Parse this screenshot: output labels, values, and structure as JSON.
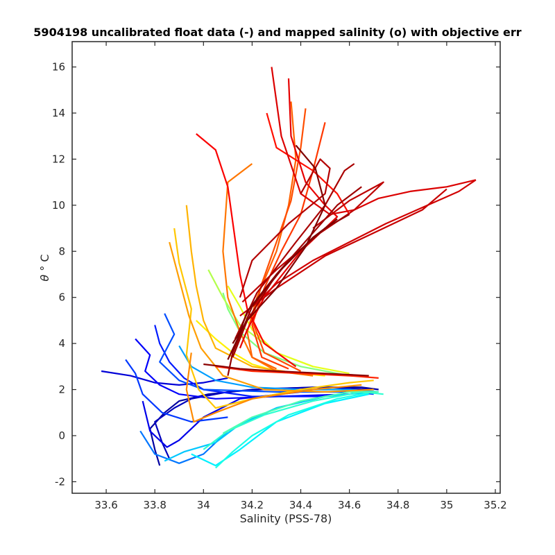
{
  "chart_data": {
    "type": "line",
    "title": "5904198 uncalibrated float data (-) and mapped salinity (o) with objective err",
    "xlabel": "Salinity (PSS-78)",
    "ylabel_symbol": "θ",
    "ylabel_unit": "° C",
    "xlim": [
      33.46,
      35.22
    ],
    "ylim": [
      -2.5,
      17.1
    ],
    "xticks": [
      33.6,
      33.8,
      34,
      34.2,
      34.4,
      34.6,
      34.8,
      35,
      35.2
    ],
    "xtick_labels": [
      "33.6",
      "33.8",
      "34",
      "34.2",
      "34.4",
      "34.6",
      "34.8",
      "35",
      "35.2"
    ],
    "yticks": [
      -2,
      0,
      2,
      4,
      6,
      8,
      10,
      12,
      14,
      16
    ],
    "ytick_labels": [
      "-2",
      "0",
      "2",
      "4",
      "6",
      "8",
      "10",
      "12",
      "14",
      "16"
    ],
    "grid": false,
    "colormap": [
      "#00008f",
      "#0000ff",
      "#0080ff",
      "#00ffff",
      "#80ff80",
      "#ffff00",
      "#ff8000",
      "#ff0000",
      "#800000"
    ],
    "series": [
      {
        "color_index": 0.02,
        "x": [
          33.82,
          33.8,
          33.78,
          33.84,
          33.9,
          34.02,
          34.2,
          34.45,
          34.65,
          34.72
        ],
        "y": [
          -1.3,
          -0.6,
          0.3,
          1.0,
          1.5,
          1.8,
          2.0,
          2.1,
          2.1,
          2.0
        ]
      },
      {
        "color_index": 0.05,
        "x": [
          33.86,
          33.83,
          33.8,
          33.88,
          33.95,
          34.1,
          34.3,
          34.5,
          34.7
        ],
        "y": [
          -1.0,
          -0.3,
          0.6,
          1.2,
          1.6,
          1.9,
          2.05,
          2.1,
          2.0
        ]
      },
      {
        "color_index": 0.08,
        "x": [
          33.58,
          33.7,
          33.8,
          33.9,
          34.0,
          34.1
        ],
        "y": [
          2.8,
          2.6,
          2.3,
          2.2,
          2.3,
          2.5
        ]
      },
      {
        "color_index": 0.1,
        "x": [
          33.75,
          33.78,
          33.85,
          33.9,
          34.0,
          34.15,
          34.4,
          34.7
        ],
        "y": [
          1.5,
          0.2,
          -0.5,
          -0.2,
          0.8,
          1.6,
          1.9,
          1.9
        ]
      },
      {
        "color_index": 0.12,
        "x": [
          33.72,
          33.78,
          33.76,
          33.82,
          33.9,
          34.05,
          34.3,
          34.6
        ],
        "y": [
          4.2,
          3.5,
          2.8,
          2.2,
          1.8,
          1.6,
          1.7,
          1.8
        ]
      },
      {
        "color_index": 0.15,
        "x": [
          33.8,
          33.82,
          33.86,
          33.92,
          34.0,
          34.2,
          34.5
        ],
        "y": [
          4.8,
          4.0,
          3.2,
          2.5,
          2.0,
          1.7,
          1.7
        ]
      },
      {
        "color_index": 0.18,
        "x": [
          33.68,
          33.72,
          33.75,
          33.83,
          33.95,
          34.1
        ],
        "y": [
          3.3,
          2.7,
          1.8,
          1.0,
          0.6,
          0.8
        ]
      },
      {
        "color_index": 0.2,
        "x": [
          33.84,
          33.88,
          33.82,
          33.9,
          34.0,
          34.3,
          34.6,
          34.7
        ],
        "y": [
          5.3,
          4.4,
          3.2,
          2.4,
          2.0,
          1.9,
          1.9,
          1.8
        ]
      },
      {
        "color_index": 0.24,
        "x": [
          33.74,
          33.8,
          33.9,
          34.0,
          34.1,
          34.3,
          34.5
        ],
        "y": [
          0.2,
          -0.8,
          -1.2,
          -0.8,
          0.2,
          1.2,
          1.7
        ]
      },
      {
        "color_index": 0.28,
        "x": [
          33.9,
          33.95,
          34.05,
          34.2,
          34.4,
          34.6,
          34.72
        ],
        "y": [
          3.9,
          3.0,
          2.4,
          2.1,
          2.0,
          2.0,
          1.9
        ]
      },
      {
        "color_index": 0.32,
        "x": [
          33.84,
          33.92,
          34.05,
          34.15,
          34.3,
          34.5,
          34.7
        ],
        "y": [
          -1.1,
          -0.7,
          -0.3,
          0.5,
          1.2,
          1.7,
          1.9
        ]
      },
      {
        "color_index": 0.36,
        "x": [
          33.95,
          34.05,
          34.15,
          34.3,
          34.5,
          34.68
        ],
        "y": [
          -0.8,
          -1.3,
          -0.6,
          0.6,
          1.4,
          1.8
        ]
      },
      {
        "color_index": 0.4,
        "x": [
          34.05,
          34.12,
          34.2,
          34.35,
          34.55,
          34.7
        ],
        "y": [
          -1.4,
          -0.7,
          0.0,
          0.9,
          1.6,
          1.9
        ]
      },
      {
        "color_index": 0.42,
        "x": [
          34.0,
          34.1,
          34.25,
          34.45,
          34.65,
          34.74
        ],
        "y": [
          -0.6,
          0.2,
          0.9,
          1.5,
          1.9,
          1.8
        ]
      },
      {
        "color_index": 0.45,
        "x": [
          34.08,
          34.2,
          34.4,
          34.6,
          34.72
        ],
        "y": [
          0.1,
          0.8,
          1.5,
          1.9,
          1.9
        ]
      },
      {
        "color_index": 0.5,
        "x": [
          34.08,
          34.1,
          34.15,
          34.25,
          34.4,
          34.6
        ],
        "y": [
          6.2,
          5.5,
          4.5,
          3.6,
          3.0,
          2.6
        ]
      },
      {
        "color_index": 0.55,
        "x": [
          34.02,
          34.08,
          34.15,
          34.3,
          34.45
        ],
        "y": [
          7.2,
          6.0,
          4.8,
          3.6,
          3.0
        ]
      },
      {
        "color_index": 0.6,
        "x": [
          34.1,
          34.15,
          34.2,
          34.3,
          34.45,
          34.6
        ],
        "y": [
          6.5,
          5.6,
          4.6,
          3.6,
          3.0,
          2.7
        ]
      },
      {
        "color_index": 0.64,
        "x": [
          33.97,
          34.05,
          34.12,
          34.2,
          34.3,
          34.5
        ],
        "y": [
          5.0,
          4.2,
          3.6,
          3.1,
          2.8,
          2.6
        ]
      },
      {
        "color_index": 0.68,
        "x": [
          33.88,
          33.9,
          33.95,
          33.93,
          33.98,
          34.05,
          34.2,
          34.4,
          34.6,
          34.7
        ],
        "y": [
          9.0,
          7.5,
          5.5,
          3.5,
          2.0,
          1.2,
          1.6,
          2.0,
          2.3,
          2.4
        ]
      },
      {
        "color_index": 0.7,
        "x": [
          33.93,
          33.95,
          33.97,
          34.0,
          34.05,
          34.2,
          34.45
        ],
        "y": [
          10.0,
          8.0,
          6.5,
          5.0,
          3.8,
          3.0,
          2.6
        ]
      },
      {
        "color_index": 0.72,
        "x": [
          33.86,
          33.9,
          33.94,
          33.99,
          34.08,
          34.25,
          34.5,
          34.7
        ],
        "y": [
          8.4,
          6.8,
          5.2,
          3.8,
          2.6,
          2.0,
          1.9,
          2.0
        ]
      },
      {
        "color_index": 0.74,
        "x": [
          33.95,
          33.93,
          33.96,
          34.05,
          34.2,
          34.45,
          34.65
        ],
        "y": [
          3.6,
          2.0,
          0.6,
          1.0,
          1.6,
          2.0,
          2.2
        ]
      },
      {
        "color_index": 0.76,
        "x": [
          34.2,
          34.1,
          34.08,
          34.1,
          34.15,
          34.2,
          34.3,
          34.45
        ],
        "y": [
          11.8,
          11.0,
          8.0,
          6.0,
          4.5,
          3.4,
          2.8,
          2.6
        ]
      },
      {
        "color_index": 0.78,
        "x": [
          34.36,
          34.38,
          34.35,
          34.3,
          34.22,
          34.18,
          34.2,
          34.3
        ],
        "y": [
          14.5,
          12.0,
          10.0,
          8.0,
          6.0,
          4.5,
          3.4,
          2.9
        ]
      },
      {
        "color_index": 0.8,
        "x": [
          34.42,
          34.4,
          34.36,
          34.3,
          34.24,
          34.2,
          34.25,
          34.4
        ],
        "y": [
          14.2,
          12.5,
          10.2,
          8.4,
          6.6,
          5.0,
          3.6,
          2.8
        ]
      },
      {
        "color_index": 0.82,
        "x": [
          34.5,
          34.45,
          34.4,
          34.32,
          34.25,
          34.2,
          34.24,
          34.35
        ],
        "y": [
          13.6,
          11.5,
          9.6,
          8.0,
          6.4,
          4.8,
          3.4,
          2.9
        ]
      },
      {
        "color_index": 0.84,
        "x": [
          34.05,
          34.2,
          34.4,
          34.6,
          34.72
        ],
        "y": [
          3.0,
          2.8,
          2.7,
          2.6,
          2.5
        ]
      },
      {
        "color_index": 0.86,
        "x": [
          34.26,
          34.3,
          34.45,
          34.55,
          34.6
        ],
        "y": [
          14.0,
          12.5,
          11.5,
          10.5,
          9.6
        ]
      },
      {
        "color_index": 0.88,
        "x": [
          33.97,
          34.05,
          34.1,
          34.15,
          34.18,
          34.25,
          34.38
        ],
        "y": [
          13.1,
          12.4,
          10.8,
          7.0,
          5.5,
          4.0,
          3.0
        ]
      },
      {
        "color_index": 0.9,
        "x": [
          34.35,
          34.36,
          34.42,
          34.5,
          34.55,
          34.4,
          34.25,
          34.18,
          34.15
        ],
        "y": [
          15.5,
          13.0,
          11.0,
          10.0,
          9.5,
          8.0,
          6.0,
          4.6,
          3.8
        ]
      },
      {
        "color_index": 0.91,
        "x": [
          34.28,
          34.32,
          34.4,
          34.52,
          34.62,
          34.72,
          34.85,
          35.0,
          35.12
        ],
        "y": [
          16.0,
          13.0,
          10.5,
          9.6,
          9.8,
          10.3,
          10.6,
          10.8,
          11.1
        ]
      },
      {
        "color_index": 0.92,
        "x": [
          34.2,
          34.3,
          34.45,
          34.6,
          34.75,
          34.9,
          35.05,
          35.12
        ],
        "y": [
          5.6,
          6.6,
          7.6,
          8.4,
          9.2,
          9.9,
          10.6,
          11.1
        ]
      },
      {
        "color_index": 0.93,
        "x": [
          34.15,
          34.3,
          34.5,
          34.7,
          34.9,
          35.0
        ],
        "y": [
          5.2,
          6.4,
          7.8,
          8.8,
          9.8,
          10.7
        ]
      },
      {
        "color_index": 0.94,
        "x": [
          34.16,
          34.3,
          34.48,
          34.62,
          34.74,
          34.6,
          34.45
        ],
        "y": [
          5.8,
          7.2,
          8.8,
          9.8,
          11.0,
          10.2,
          9.0
        ]
      },
      {
        "color_index": 0.95,
        "x": [
          34.15,
          34.2,
          34.35,
          34.5,
          34.52,
          34.48,
          34.4
        ],
        "y": [
          6.0,
          7.6,
          9.2,
          10.5,
          11.6,
          12.0,
          10.5
        ]
      },
      {
        "color_index": 0.96,
        "x": [
          34.13,
          34.22,
          34.38,
          34.5,
          34.58,
          34.62
        ],
        "y": [
          4.2,
          6.2,
          8.4,
          10.0,
          11.5,
          11.8
        ]
      },
      {
        "color_index": 0.97,
        "x": [
          34.12,
          34.18,
          34.3,
          34.45,
          34.55,
          34.65
        ],
        "y": [
          3.4,
          5.0,
          7.0,
          8.8,
          10.0,
          10.8
        ]
      },
      {
        "color_index": 0.98,
        "x": [
          34.1,
          34.12,
          34.2,
          34.35,
          34.5,
          34.6
        ],
        "y": [
          2.6,
          3.6,
          5.6,
          7.6,
          9.0,
          9.6
        ]
      },
      {
        "color_index": 0.99,
        "x": [
          34.0,
          34.08,
          34.15,
          34.3,
          34.5,
          34.68
        ],
        "y": [
          3.1,
          3.0,
          2.9,
          2.8,
          2.7,
          2.6
        ]
      },
      {
        "color_index": 1.0,
        "x": [
          34.1,
          34.14,
          34.18,
          34.3,
          34.45,
          34.55
        ],
        "y": [
          3.3,
          4.2,
          5.4,
          7.0,
          8.6,
          9.4
        ]
      },
      {
        "color_index": 1.0,
        "x": [
          34.12,
          34.18,
          34.3,
          34.42,
          34.5,
          34.46,
          34.38
        ],
        "y": [
          4.0,
          5.0,
          6.4,
          8.2,
          10.0,
          11.6,
          12.6
        ]
      }
    ]
  }
}
